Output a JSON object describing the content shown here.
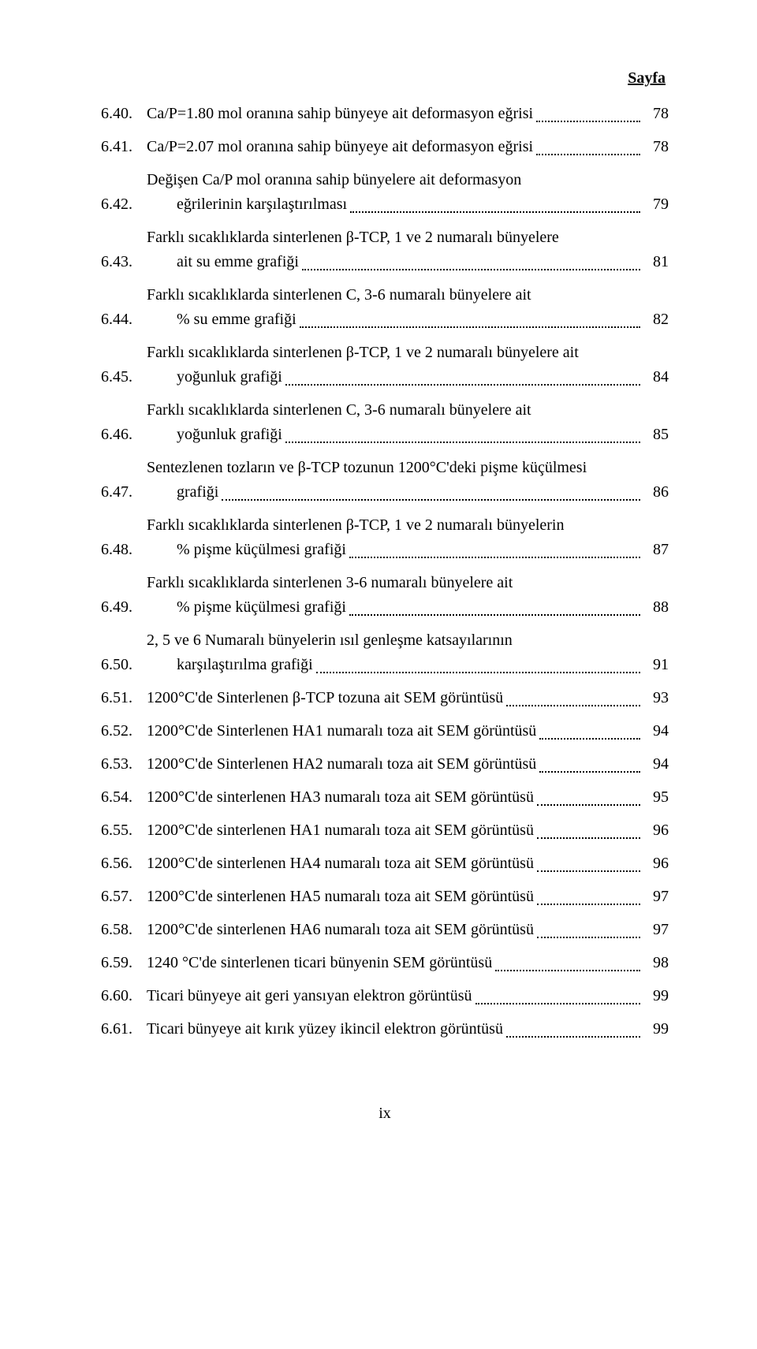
{
  "header": "Sayfa",
  "footer": "ix",
  "entries": [
    {
      "num": "6.40.",
      "lines": [
        "Ca/P=1.80 mol oranına sahip bünyeye ait deformasyon eğrisi"
      ],
      "page": "78"
    },
    {
      "num": "6.41.",
      "lines": [
        "Ca/P=2.07 mol oranına sahip bünyeye ait deformasyon eğrisi"
      ],
      "page": "78"
    },
    {
      "num": "6.42.",
      "lines": [
        "Değişen Ca/P mol oranına sahip bünyelere ait deformasyon",
        "eğrilerinin karşılaştırılması"
      ],
      "page": "79"
    },
    {
      "num": "6.43.",
      "lines": [
        "Farklı sıcaklıklarda sinterlenen β-TCP, 1 ve 2 numaralı bünyelere",
        "ait su emme grafiği"
      ],
      "page": "81"
    },
    {
      "num": "6.44.",
      "lines": [
        "Farklı sıcaklıklarda sinterlenen C, 3-6 numaralı bünyelere ait",
        "% su emme grafiği"
      ],
      "page": "82"
    },
    {
      "num": "6.45.",
      "lines": [
        "Farklı sıcaklıklarda sinterlenen β-TCP, 1 ve 2 numaralı bünyelere ait",
        "yoğunluk grafiği"
      ],
      "page": "84"
    },
    {
      "num": "6.46.",
      "lines": [
        "Farklı sıcaklıklarda sinterlenen C, 3-6 numaralı bünyelere ait",
        "yoğunluk grafiği"
      ],
      "page": "85"
    },
    {
      "num": "6.47.",
      "lines": [
        "Sentezlenen tozların ve β-TCP tozunun 1200°C'deki pişme küçülmesi",
        "grafiği"
      ],
      "page": "86"
    },
    {
      "num": "6.48.",
      "lines": [
        "Farklı sıcaklıklarda sinterlenen β-TCP, 1 ve 2 numaralı bünyelerin",
        "% pişme küçülmesi grafiği"
      ],
      "page": "87"
    },
    {
      "num": "6.49.",
      "lines": [
        "Farklı sıcaklıklarda sinterlenen 3-6 numaralı bünyelere ait",
        "% pişme küçülmesi grafiği"
      ],
      "page": "88"
    },
    {
      "num": "6.50.",
      "lines": [
        "2, 5 ve 6 Numaralı bünyelerin ısıl genleşme katsayılarının",
        "karşılaştırılma grafiği"
      ],
      "page": "91"
    },
    {
      "num": "6.51.",
      "lines": [
        "1200°C'de Sinterlenen β-TCP tozuna ait SEM görüntüsü"
      ],
      "page": "93"
    },
    {
      "num": "6.52.",
      "lines": [
        "1200°C'de Sinterlenen HA1 numaralı toza ait SEM görüntüsü"
      ],
      "page": "94"
    },
    {
      "num": "6.53.",
      "lines": [
        "1200°C'de Sinterlenen HA2 numaralı toza ait  SEM görüntüsü"
      ],
      "page": "94"
    },
    {
      "num": "6.54.",
      "lines": [
        "1200°C'de sinterlenen HA3 numaralı toza ait SEM görüntüsü"
      ],
      "page": "95"
    },
    {
      "num": "6.55.",
      "lines": [
        "1200°C'de sinterlenen HA1 numaralı toza ait SEM görüntüsü"
      ],
      "page": "96"
    },
    {
      "num": "6.56.",
      "lines": [
        "1200°C'de sinterlenen HA4 numaralı toza ait SEM görüntüsü"
      ],
      "page": "96"
    },
    {
      "num": "6.57.",
      "lines": [
        "1200°C'de sinterlenen HA5 numaralı toza ait SEM görüntüsü"
      ],
      "page": "97"
    },
    {
      "num": "6.58.",
      "lines": [
        "1200°C'de sinterlenen HA6 numaralı toza ait SEM görüntüsü"
      ],
      "page": "97"
    },
    {
      "num": "6.59.",
      "lines": [
        "1240 °C'de sinterlenen ticari bünyenin SEM görüntüsü"
      ],
      "page": "98"
    },
    {
      "num": "6.60.",
      "lines": [
        "Ticari bünyeye ait geri yansıyan elektron görüntüsü"
      ],
      "page": "99"
    },
    {
      "num": "6.61.",
      "lines": [
        "Ticari bünyeye ait kırık yüzey ikincil elektron görüntüsü"
      ],
      "page": "99"
    }
  ]
}
